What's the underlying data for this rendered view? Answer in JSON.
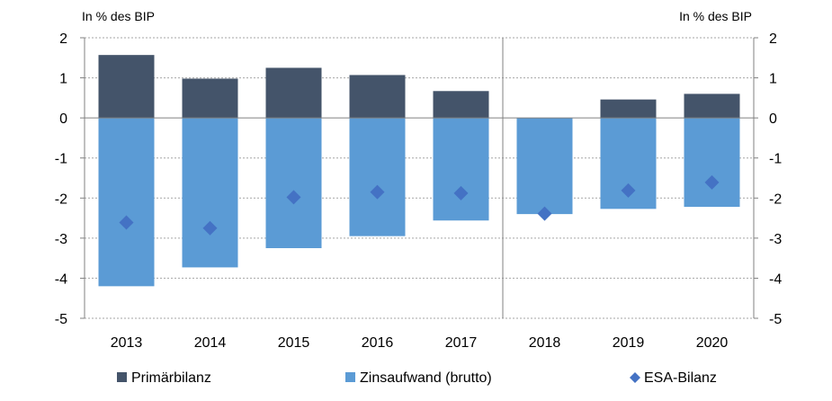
{
  "chart_data": {
    "type": "bar",
    "stacked": true,
    "ylabel_left": "In % des BIP",
    "ylabel_right": "In % des BIP",
    "ylim": [
      -5,
      2
    ],
    "yticks": [
      2,
      1,
      0,
      -1,
      -2,
      -3,
      -4,
      -5
    ],
    "grid": true,
    "legend_position": "bottom",
    "divider_after_category": "2017",
    "categories": [
      "2013",
      "2014",
      "2015",
      "2016",
      "2017",
      "2018",
      "2019",
      "2020"
    ],
    "series": [
      {
        "name": "Primärbilanz",
        "kind": "bar",
        "color": "#44546a",
        "values": [
          1.57,
          0.98,
          1.25,
          1.07,
          0.67,
          -0.02,
          0.46,
          0.6
        ]
      },
      {
        "name": "Zinsaufwand (brutto)",
        "kind": "bar",
        "color": "#5b9bd5",
        "values": [
          -4.2,
          -3.73,
          -3.25,
          -2.95,
          -2.56,
          -2.4,
          -2.27,
          -2.22
        ]
      },
      {
        "name": "ESA-Bilanz",
        "kind": "marker",
        "color": "#4472c4",
        "values": [
          -2.61,
          -2.75,
          -1.98,
          -1.85,
          -1.88,
          -2.39,
          -1.81,
          -1.61
        ]
      }
    ]
  }
}
